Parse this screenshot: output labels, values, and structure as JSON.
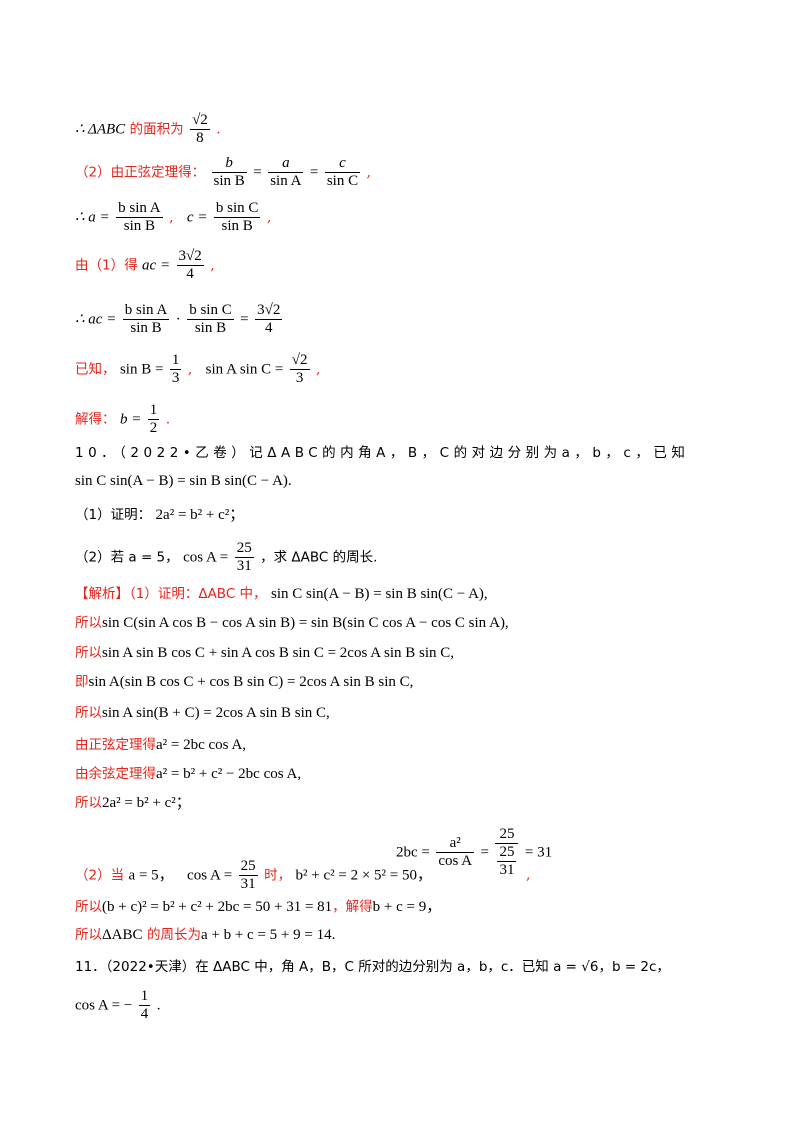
{
  "l1": {
    "pre": "∴ ΔABC",
    "text": "的面积为",
    "num": "√2",
    "den": "8",
    "end": "."
  },
  "l2": {
    "label": "（2）由正弦定理得：",
    "f1n": "b",
    "f1d": "sin B",
    "f2n": "a",
    "f2d": "sin A",
    "f3n": "c",
    "f3d": "sin C",
    "end": ","
  },
  "l3": {
    "a_pre": "∴ a =",
    "a_num": "b sin A",
    "a_den": "sin B",
    "sep": ",",
    "c_pre": "c =",
    "c_num": "b sin C",
    "c_den": "sin B",
    "end": ","
  },
  "l4": {
    "label": "由（1）得",
    "pre": "ac =",
    "num": "3√2",
    "den": "4",
    "end": ","
  },
  "l5": {
    "pre": "∴ ac =",
    "n1": "b sin A",
    "d1": "sin B",
    "dot": "·",
    "n2": "b sin C",
    "d2": "sin B",
    "eq": "=",
    "n3": "3√2",
    "d3": "4"
  },
  "l6": {
    "label": "已知，",
    "pre1": "sin B =",
    "n1": "1",
    "d1": "3",
    "sep": ",",
    "pre2": "sin A sin C =",
    "n2": "√2",
    "d2": "3",
    "end": ","
  },
  "l7": {
    "label": "解得：",
    "pre": "b =",
    "num": "1",
    "den": "2",
    "end": "."
  },
  "q10": {
    "line1": "10．（2022•乙卷）记ΔABC的内角A，B，C的对边分别为a，b，c，已知",
    "line2": "sin C sin(A − B) = sin B sin(C − A).",
    "p1_label": "（1）证明：",
    "p1_math": "2a² = b² + c²；",
    "p2_pre": "（2）若 a = 5，",
    "p2_cos": "cos A =",
    "p2_num": "25",
    "p2_den": "31",
    "p2_post": "，求 ΔABC 的周长."
  },
  "sol": {
    "tag": "【解析】",
    "s1_label": "（1）证明：ΔABC 中，",
    "s1_math": "sin C sin(A − B) = sin B sin(C − A),",
    "s2_label": "所以",
    "s2_math": "sin C(sin A cos B − cos A sin B) = sin B(sin C cos A − cos C sin A),",
    "s3_label": "所以",
    "s3_math": "sin A sin B cos C + sin A cos B sin C = 2cos A sin B sin C,",
    "s4_label": "即",
    "s4_math": "sin A(sin B cos C + cos B sin C) = 2cos A sin B sin C,",
    "s5_label": "所以",
    "s5_math": "sin A sin(B + C) = 2cos A sin B sin C,",
    "s6_label": "由正弦定理得",
    "s6_math": "a² = 2bc cos A,",
    "s7_label": "由余弦定理得",
    "s7_math": "a² = b² + c² − 2bc cos A,",
    "s8_label": "所以",
    "s8_math": "2a² = b² + c²；",
    "s9_label": "（2）当",
    "s9_a": "a = 5，",
    "s9_cos": "cos A =",
    "s9_n": "25",
    "s9_d": "31",
    "s9_when": "时，",
    "s9_b": "b² + c² = 2 × 5² = 50，",
    "s9_right_pre": "2bc =",
    "s9_rn": "a²",
    "s9_rd": "cos A",
    "s9_eq": "=",
    "s9_r2n": "25",
    "s9_r2d_n": "25",
    "s9_r2d_d": "31",
    "s9_r3": "= 31",
    "s9_end": ",",
    "s10_label": "所以",
    "s10_math": "(b + c)² = b² + c² + 2bc = 50 + 31 = 81",
    "s10_mid": "，解得",
    "s10_math2": "b + c = 9，",
    "s11_label": "所以",
    "s11_math": "ΔABC",
    "s11_mid": "的周长为",
    "s11_math2": "a + b + c = 5 + 9 = 14."
  },
  "q11": {
    "line1": "11．（2022•天津）在 ΔABC 中，角 A，B，C 所对的边分别为 a，b，c．已知 a = √6，b = 2c，",
    "pre": "cos A = −",
    "num": "1",
    "den": "4",
    "end": "."
  }
}
